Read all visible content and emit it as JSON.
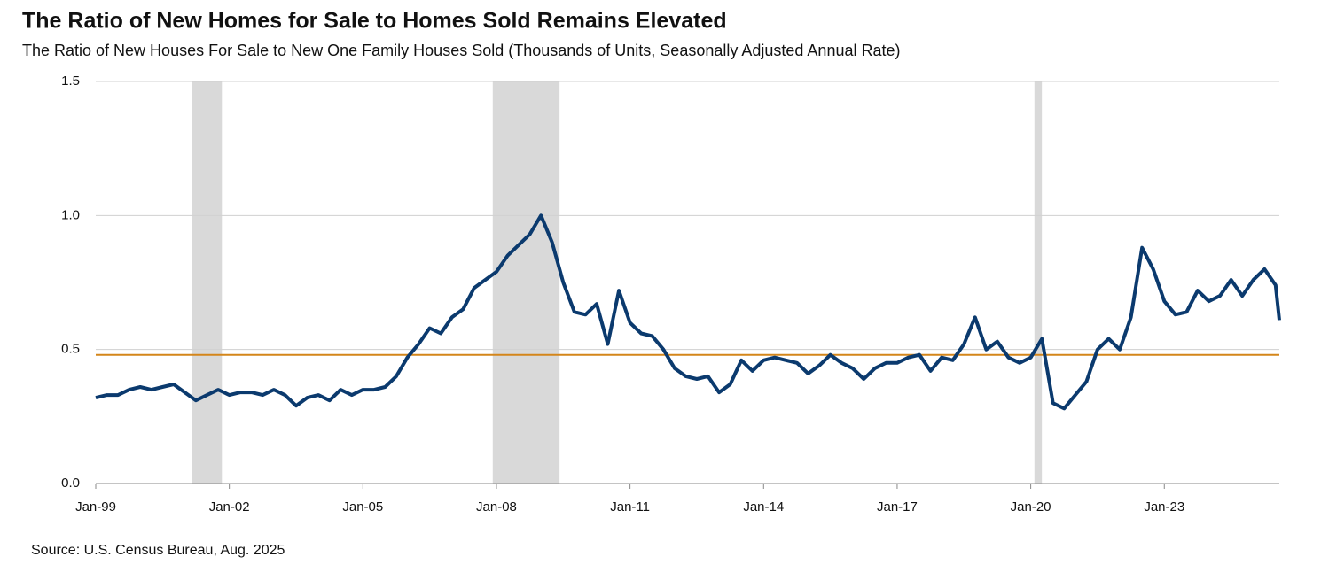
{
  "chart_data": {
    "type": "line",
    "title": "The Ratio of New Homes for Sale to Homes Sold Remains Elevated",
    "subtitle": "The Ratio of New Houses For Sale to New One Family Houses Sold (Thousands of Units, Seasonally Adjusted Annual Rate)",
    "source": "Source: U.S. Census Bureau, Aug. 2025",
    "x": [
      "1999-01",
      "1999-04",
      "1999-07",
      "1999-10",
      "2000-01",
      "2000-04",
      "2000-07",
      "2000-10",
      "2001-01",
      "2001-04",
      "2001-07",
      "2001-10",
      "2002-01",
      "2002-04",
      "2002-07",
      "2002-10",
      "2003-01",
      "2003-04",
      "2003-07",
      "2003-10",
      "2004-01",
      "2004-04",
      "2004-07",
      "2004-10",
      "2005-01",
      "2005-04",
      "2005-07",
      "2005-10",
      "2006-01",
      "2006-04",
      "2006-07",
      "2006-10",
      "2007-01",
      "2007-04",
      "2007-07",
      "2007-10",
      "2008-01",
      "2008-04",
      "2008-07",
      "2008-10",
      "2009-01",
      "2009-04",
      "2009-07",
      "2009-10",
      "2010-01",
      "2010-04",
      "2010-07",
      "2010-10",
      "2011-01",
      "2011-04",
      "2011-07",
      "2011-10",
      "2012-01",
      "2012-04",
      "2012-07",
      "2012-10",
      "2013-01",
      "2013-04",
      "2013-07",
      "2013-10",
      "2014-01",
      "2014-04",
      "2014-07",
      "2014-10",
      "2015-01",
      "2015-04",
      "2015-07",
      "2015-10",
      "2016-01",
      "2016-04",
      "2016-07",
      "2016-10",
      "2017-01",
      "2017-04",
      "2017-07",
      "2017-10",
      "2018-01",
      "2018-04",
      "2018-07",
      "2018-10",
      "2019-01",
      "2019-04",
      "2019-07",
      "2019-10",
      "2020-01",
      "2020-04",
      "2020-07",
      "2020-10",
      "2021-01",
      "2021-04",
      "2021-07",
      "2021-10",
      "2022-01",
      "2022-04",
      "2022-07",
      "2022-10",
      "2023-01",
      "2023-04",
      "2023-07",
      "2023-10",
      "2024-01",
      "2024-04",
      "2024-07",
      "2024-10",
      "2025-01",
      "2025-04",
      "2025-07",
      "2025-08"
    ],
    "series": [
      {
        "color": "#0b3a6e",
        "values": [
          0.32,
          0.33,
          0.33,
          0.35,
          0.36,
          0.35,
          0.36,
          0.37,
          0.34,
          0.31,
          0.33,
          0.35,
          0.33,
          0.34,
          0.34,
          0.33,
          0.35,
          0.33,
          0.29,
          0.32,
          0.33,
          0.31,
          0.35,
          0.33,
          0.35,
          0.35,
          0.36,
          0.4,
          0.47,
          0.52,
          0.58,
          0.56,
          0.62,
          0.65,
          0.73,
          0.76,
          0.79,
          0.85,
          0.89,
          0.93,
          1.0,
          0.9,
          0.75,
          0.64,
          0.63,
          0.67,
          0.52,
          0.72,
          0.6,
          0.56,
          0.55,
          0.5,
          0.43,
          0.4,
          0.39,
          0.4,
          0.34,
          0.37,
          0.46,
          0.42,
          0.46,
          0.47,
          0.46,
          0.45,
          0.41,
          0.44,
          0.48,
          0.45,
          0.43,
          0.39,
          0.43,
          0.45,
          0.45,
          0.47,
          0.48,
          0.42,
          0.47,
          0.46,
          0.52,
          0.62,
          0.5,
          0.53,
          0.47,
          0.45,
          0.47,
          0.54,
          0.3,
          0.28,
          0.33,
          0.38,
          0.5,
          0.54,
          0.5,
          0.62,
          0.88,
          0.8,
          0.68,
          0.63,
          0.64,
          0.72,
          0.68,
          0.7,
          0.76,
          0.7,
          0.76,
          0.8,
          0.74,
          0.61
        ]
      }
    ],
    "reference_line": {
      "value": 0.48,
      "color": "#d4861a"
    },
    "recessions": {
      "color": "#d9d9d9",
      "spans": [
        [
          "2001-03",
          "2001-11"
        ],
        [
          "2007-12",
          "2009-06"
        ],
        [
          "2020-02",
          "2020-04"
        ]
      ]
    },
    "xlim": [
      "1999-01",
      "2025-08"
    ],
    "xticks": [
      {
        "value": "1999-01",
        "label": "Jan-99"
      },
      {
        "value": "2002-01",
        "label": "Jan-02"
      },
      {
        "value": "2005-01",
        "label": "Jan-05"
      },
      {
        "value": "2008-01",
        "label": "Jan-08"
      },
      {
        "value": "2011-01",
        "label": "Jan-11"
      },
      {
        "value": "2014-01",
        "label": "Jan-14"
      },
      {
        "value": "2017-01",
        "label": "Jan-17"
      },
      {
        "value": "2020-01",
        "label": "Jan-20"
      },
      {
        "value": "2023-01",
        "label": "Jan-23"
      }
    ],
    "ylim": [
      0,
      1.5
    ],
    "yticks": [
      {
        "value": 0,
        "label": "0.0"
      },
      {
        "value": 0.5,
        "label": "0.5"
      },
      {
        "value": 1,
        "label": "1.0"
      },
      {
        "value": 1.5,
        "label": "1.5"
      }
    ],
    "grid": true
  }
}
